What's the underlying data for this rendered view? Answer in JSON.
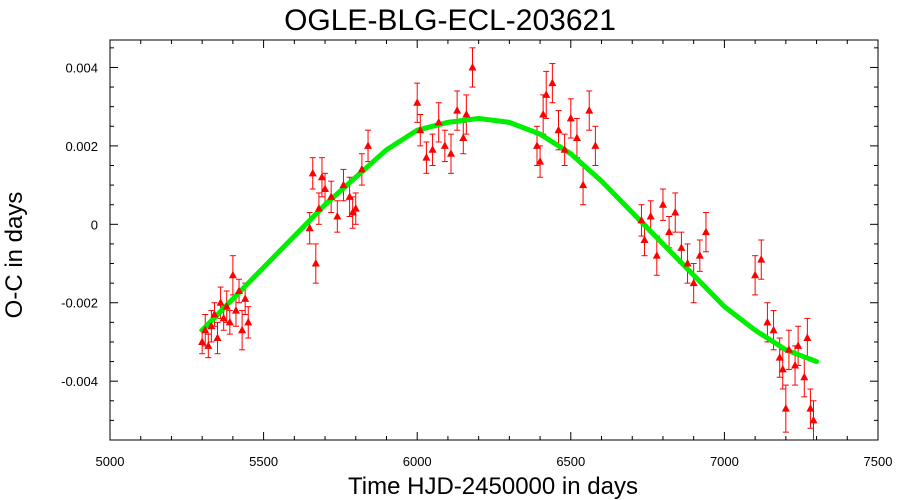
{
  "chart_data": {
    "type": "scatter",
    "title": "OGLE-BLG-ECL-203621",
    "xlabel": "Time HJD-2450000 in days",
    "ylabel": "O-C in days",
    "xlim": [
      5000,
      7500
    ],
    "ylim": [
      -0.0055,
      0.0047
    ],
    "xticks": [
      5000,
      5500,
      6000,
      6500,
      7000,
      7500
    ],
    "xtick_labels": [
      "5000",
      "5500",
      "6000",
      "6500",
      "7000",
      "7500"
    ],
    "yticks": [
      -0.004,
      -0.002,
      0,
      0.002,
      0.004
    ],
    "ytick_labels": [
      "-0.004",
      "-0.002",
      "0",
      "0.002",
      "0.004"
    ],
    "grid": false,
    "series": [
      {
        "kind": "points_with_errorbars",
        "color": "#ff0000",
        "marker": "triangle",
        "points": [
          {
            "x": 5300,
            "y": -0.003,
            "err": 0.0003
          },
          {
            "x": 5310,
            "y": -0.0027,
            "err": 0.0004
          },
          {
            "x": 5320,
            "y": -0.0031,
            "err": 0.0003
          },
          {
            "x": 5330,
            "y": -0.0026,
            "err": 0.0004
          },
          {
            "x": 5340,
            "y": -0.0023,
            "err": 0.0003
          },
          {
            "x": 5350,
            "y": -0.0029,
            "err": 0.0004
          },
          {
            "x": 5360,
            "y": -0.002,
            "err": 0.0004
          },
          {
            "x": 5370,
            "y": -0.0024,
            "err": 0.0003
          },
          {
            "x": 5380,
            "y": -0.0021,
            "err": 0.0004
          },
          {
            "x": 5390,
            "y": -0.0025,
            "err": 0.0003
          },
          {
            "x": 5400,
            "y": -0.0013,
            "err": 0.0005
          },
          {
            "x": 5410,
            "y": -0.0022,
            "err": 0.0004
          },
          {
            "x": 5420,
            "y": -0.0017,
            "err": 0.0003
          },
          {
            "x": 5430,
            "y": -0.0027,
            "err": 0.0005
          },
          {
            "x": 5440,
            "y": -0.0019,
            "err": 0.0004
          },
          {
            "x": 5450,
            "y": -0.0025,
            "err": 0.0004
          },
          {
            "x": 5650,
            "y": -0.0001,
            "err": 0.0004
          },
          {
            "x": 5660,
            "y": 0.0013,
            "err": 0.0004
          },
          {
            "x": 5670,
            "y": -0.001,
            "err": 0.0005
          },
          {
            "x": 5680,
            "y": 0.0004,
            "err": 0.0004
          },
          {
            "x": 5690,
            "y": 0.0012,
            "err": 0.0005
          },
          {
            "x": 5700,
            "y": 0.0009,
            "err": 0.0004
          },
          {
            "x": 5720,
            "y": 0.0007,
            "err": 0.0004
          },
          {
            "x": 5740,
            "y": 0.0002,
            "err": 0.0004
          },
          {
            "x": 5760,
            "y": 0.001,
            "err": 0.0004
          },
          {
            "x": 5780,
            "y": 0.0007,
            "err": 0.0005
          },
          {
            "x": 5790,
            "y": 0.0003,
            "err": 0.0004
          },
          {
            "x": 5800,
            "y": 0.0004,
            "err": 0.0004
          },
          {
            "x": 5820,
            "y": 0.0014,
            "err": 0.0004
          },
          {
            "x": 5840,
            "y": 0.002,
            "err": 0.0004
          },
          {
            "x": 6000,
            "y": 0.0031,
            "err": 0.0005
          },
          {
            "x": 6010,
            "y": 0.0024,
            "err": 0.0004
          },
          {
            "x": 6030,
            "y": 0.0017,
            "err": 0.0004
          },
          {
            "x": 6050,
            "y": 0.0019,
            "err": 0.0004
          },
          {
            "x": 6070,
            "y": 0.0026,
            "err": 0.0005
          },
          {
            "x": 6090,
            "y": 0.002,
            "err": 0.0004
          },
          {
            "x": 6110,
            "y": 0.0018,
            "err": 0.0005
          },
          {
            "x": 6130,
            "y": 0.0029,
            "err": 0.0005
          },
          {
            "x": 6150,
            "y": 0.0022,
            "err": 0.0004
          },
          {
            "x": 6160,
            "y": 0.0028,
            "err": 0.0005
          },
          {
            "x": 6180,
            "y": 0.004,
            "err": 0.0005
          },
          {
            "x": 6390,
            "y": 0.002,
            "err": 0.0005
          },
          {
            "x": 6400,
            "y": 0.0016,
            "err": 0.0004
          },
          {
            "x": 6410,
            "y": 0.0028,
            "err": 0.0005
          },
          {
            "x": 6420,
            "y": 0.0033,
            "err": 0.0006
          },
          {
            "x": 6440,
            "y": 0.0036,
            "err": 0.0005
          },
          {
            "x": 6460,
            "y": 0.0024,
            "err": 0.0005
          },
          {
            "x": 6480,
            "y": 0.0019,
            "err": 0.0004
          },
          {
            "x": 6500,
            "y": 0.0027,
            "err": 0.0005
          },
          {
            "x": 6520,
            "y": 0.0022,
            "err": 0.0005
          },
          {
            "x": 6540,
            "y": 0.001,
            "err": 0.0005
          },
          {
            "x": 6560,
            "y": 0.0029,
            "err": 0.0005
          },
          {
            "x": 6580,
            "y": 0.002,
            "err": 0.0005
          },
          {
            "x": 6730,
            "y": 0.0001,
            "err": 0.0004
          },
          {
            "x": 6740,
            "y": -0.0004,
            "err": 0.0004
          },
          {
            "x": 6760,
            "y": 0.0002,
            "err": 0.0004
          },
          {
            "x": 6780,
            "y": -0.0008,
            "err": 0.0005
          },
          {
            "x": 6800,
            "y": 0.0005,
            "err": 0.0004
          },
          {
            "x": 6820,
            "y": -0.0002,
            "err": 0.0004
          },
          {
            "x": 6840,
            "y": 0.0003,
            "err": 0.0005
          },
          {
            "x": 6860,
            "y": -0.0006,
            "err": 0.0004
          },
          {
            "x": 6880,
            "y": -0.001,
            "err": 0.0005
          },
          {
            "x": 6900,
            "y": -0.0015,
            "err": 0.0005
          },
          {
            "x": 6920,
            "y": -0.0008,
            "err": 0.0004
          },
          {
            "x": 6940,
            "y": -0.0002,
            "err": 0.0005
          },
          {
            "x": 7100,
            "y": -0.0013,
            "err": 0.0005
          },
          {
            "x": 7120,
            "y": -0.0009,
            "err": 0.0005
          },
          {
            "x": 7140,
            "y": -0.0025,
            "err": 0.0005
          },
          {
            "x": 7160,
            "y": -0.0027,
            "err": 0.0005
          },
          {
            "x": 7180,
            "y": -0.0034,
            "err": 0.0005
          },
          {
            "x": 7190,
            "y": -0.0037,
            "err": 0.0005
          },
          {
            "x": 7200,
            "y": -0.0047,
            "err": 0.0006
          },
          {
            "x": 7210,
            "y": -0.0032,
            "err": 0.0005
          },
          {
            "x": 7230,
            "y": -0.0036,
            "err": 0.0005
          },
          {
            "x": 7240,
            "y": -0.0031,
            "err": 0.0005
          },
          {
            "x": 7260,
            "y": -0.0039,
            "err": 0.0005
          },
          {
            "x": 7270,
            "y": -0.0029,
            "err": 0.0005
          },
          {
            "x": 7280,
            "y": -0.0047,
            "err": 0.0005
          },
          {
            "x": 7290,
            "y": -0.005,
            "err": 0.0005
          }
        ]
      },
      {
        "kind": "line",
        "color": "#00ee00",
        "x": [
          5300,
          5400,
          5500,
          5600,
          5700,
          5800,
          5900,
          6000,
          6100,
          6200,
          6300,
          6400,
          6500,
          6600,
          6700,
          6800,
          6900,
          7000,
          7100,
          7200,
          7300
        ],
        "y": [
          -0.0027,
          -0.0019,
          -0.0011,
          -0.0003,
          0.0005,
          0.0012,
          0.0019,
          0.0024,
          0.0026,
          0.0027,
          0.0026,
          0.0023,
          0.0018,
          0.0011,
          0.0003,
          -0.0005,
          -0.0013,
          -0.0021,
          -0.0027,
          -0.0032,
          -0.0035
        ]
      }
    ]
  }
}
